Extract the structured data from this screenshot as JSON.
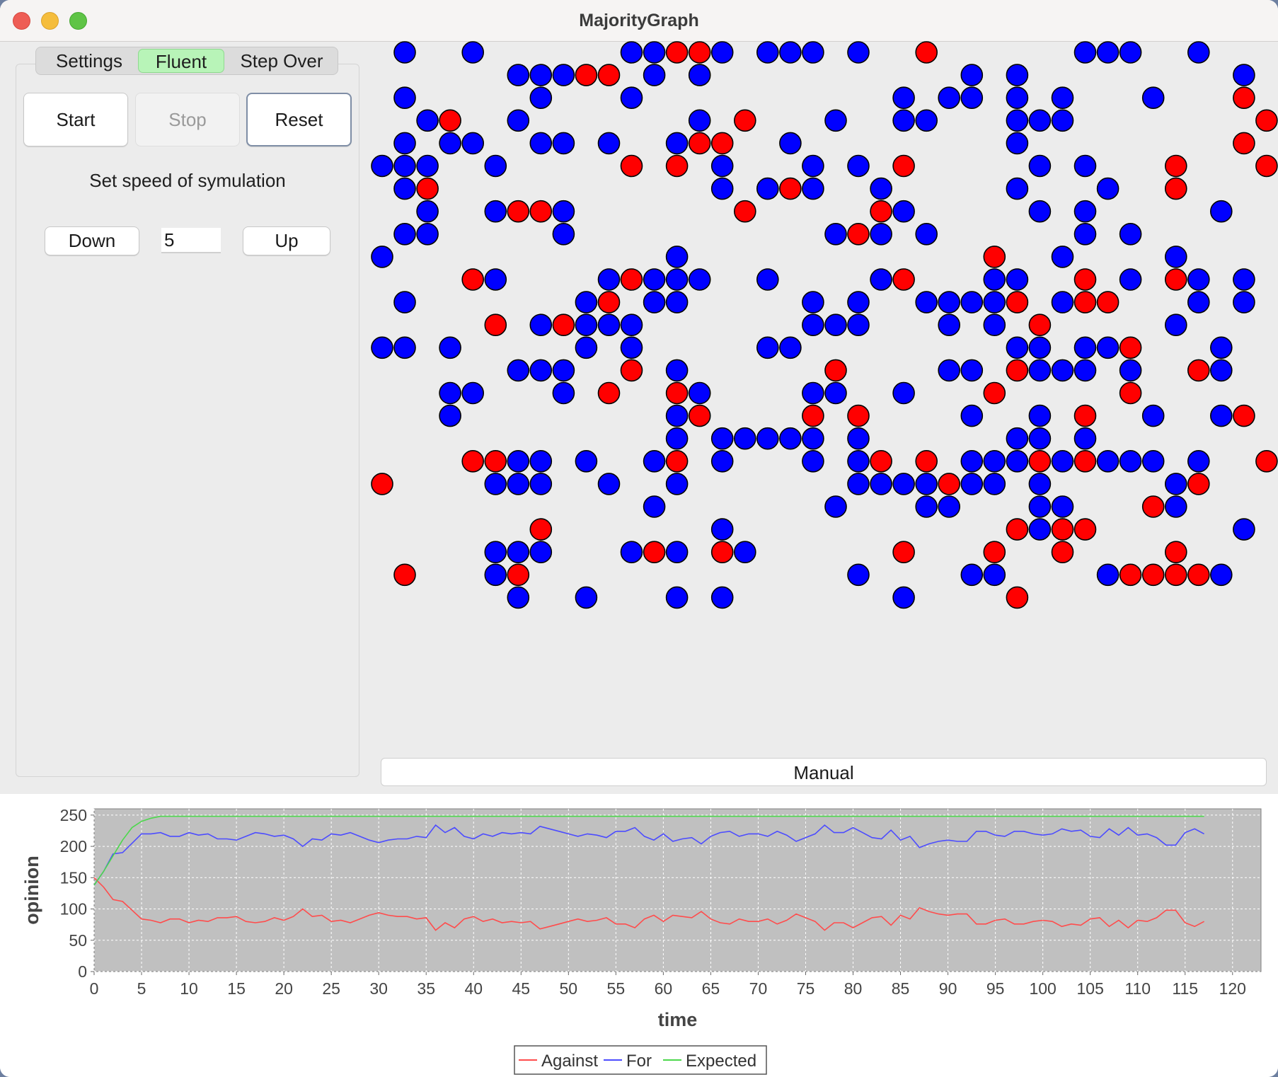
{
  "window": {
    "title": "MajorityGraph"
  },
  "tabs": [
    {
      "label": "Settings",
      "active": false
    },
    {
      "label": "Fluent",
      "active": true
    },
    {
      "label": "Step Over",
      "active": false
    }
  ],
  "controls": {
    "start_label": "Start",
    "stop_label": "Stop",
    "reset_label": "Reset",
    "speed_label": "Set speed of symulation",
    "down_label": "Down",
    "up_label": "Up",
    "speed_value": "5"
  },
  "manual_label": "Manual",
  "colors": {
    "for": "#0000ff",
    "against": "#ff0000",
    "expected": "#00e000",
    "plot_bg": "#c0c0c0",
    "tab_active": "#b8f4b8"
  },
  "grid": {
    "cols": 40,
    "rows": 25,
    "cells": [
      "R0 1B 4B 11B 12B 13R 14R 15B 17B 18B 19B 21B 24R 31B 32B 33B 36B",
      "R1 6B 7B 8B 9R 10R 12B 14B 26B 28B 38B",
      "R2 1B 7B 11B 23B 25B 26B 28B 30B 34B 38R",
      "R3 2B 3R 6B 14B 16R 20B 23B 24B 28B 29B 30B 39R",
      "R4 1B 3B 4B 7B 8B 10B 13B 14R 15R 18B 28B 38R",
      "R5 0B 1B 2B 5B 11R 13R 15B 19B 21B 23R 29B 31B 35R 39R",
      "R6 1B 2R 15B 17B 18R 19B 22B 28B 32B 35R",
      "R7 2B 5B 6R 7R 8B 16R 22R 23B 29B 31B 37B",
      "R8 1B 2B 8B 20B 21R 22B 24B 31B 33B",
      "R9 0B 13B 27R 30B 35B",
      "R10 4R 5B 10B 11R 12B 13B 14B 17B 22B 23R 27B 28B 31R 33B 35R 36B 38B",
      "R11 1B 9B 10R 12B 13B 19B 21B 24B 25B 26B 27B 28R 30B 31R 32R 36B 38B",
      "R12 5R 7B 8R 9B 10B 11B 19B 20B 21B 25B 27B 29R 35B",
      "R13 0B 1B 3B 9B 11B 17B 18B 28B 29B 31B 32B 33R 37B",
      "R14 6B 7B 8B 11R 13B 20R 25B 26B 28R 29B 30B 31B 33B 36R 37B",
      "R15 3B 4B 8B 10R 13R 14B 19B 20B 23B 27R 33R",
      "R16 3B 13B 14R 19R 21R 26B 29B 31R 34B 37B 38R",
      "R17 13B 15B 16B 17B 18B 19B 21B 28B 29B 31B",
      "R18 4R 5R 6B 7B 9B 12B 13R 15B 19B 21B 22R 24R 26B 27B 28B 29R 30B 31R 32B 33B 34B 36B 39R",
      "R19 0R 5B 6B 7B 10B 13B 21B 22B 23B 24B 25R 26B 27B 29B 35B 36R",
      "R20 12B 20B 24B 25B 29B 30B 34R 35B",
      "R21 7R 15B 28R 29B 30R 31R 38B",
      "R22 5B 6B 7B 11B 12R 13B 15R 16B 23R 27R 30R 35R",
      "R23 1R 5B 6R 21B 26B 27B 32B 33R 34R 35R 36R 37B",
      "R24 6B 9B 13B 15B 23B 28R"
    ]
  },
  "chart_data": {
    "type": "line",
    "xlabel": "time",
    "ylabel": "opinion",
    "xlim": [
      0,
      123
    ],
    "ylim": [
      0,
      260
    ],
    "xticks": [
      0,
      5,
      10,
      15,
      20,
      25,
      30,
      35,
      40,
      45,
      50,
      55,
      60,
      65,
      70,
      75,
      80,
      85,
      90,
      95,
      100,
      105,
      110,
      115,
      120
    ],
    "yticks": [
      0,
      50,
      100,
      150,
      200,
      250
    ],
    "grid": true,
    "legend_position": "bottom-center",
    "x": [
      0,
      1,
      2,
      3,
      4,
      5,
      6,
      7,
      8,
      9,
      10,
      11,
      12,
      13,
      14,
      15,
      16,
      17,
      18,
      19,
      20,
      21,
      22,
      23,
      24,
      25,
      26,
      27,
      28,
      29,
      30,
      31,
      32,
      33,
      34,
      35,
      36,
      37,
      38,
      39,
      40,
      41,
      42,
      43,
      44,
      45,
      46,
      47,
      48,
      49,
      50,
      51,
      52,
      53,
      54,
      55,
      56,
      57,
      58,
      59,
      60,
      61,
      62,
      63,
      64,
      65,
      66,
      67,
      68,
      69,
      70,
      71,
      72,
      73,
      74,
      75,
      76,
      77,
      78,
      79,
      80,
      81,
      82,
      83,
      84,
      85,
      86,
      87,
      88,
      89,
      90,
      91,
      92,
      93,
      94,
      95,
      96,
      97,
      98,
      99,
      100,
      101,
      102,
      103,
      104,
      105,
      106,
      107,
      108,
      109,
      110,
      111,
      112,
      113,
      114,
      115,
      116,
      117
    ],
    "series": [
      {
        "name": "Against",
        "color": "#ff4c4c",
        "values": [
          150,
          135,
          115,
          112,
          98,
          84,
          82,
          78,
          84,
          84,
          78,
          82,
          80,
          86,
          86,
          88,
          80,
          78,
          80,
          86,
          82,
          88,
          100,
          88,
          90,
          80,
          82,
          78,
          84,
          90,
          94,
          90,
          88,
          88,
          84,
          86,
          66,
          78,
          70,
          84,
          88,
          80,
          84,
          78,
          80,
          78,
          80,
          68,
          72,
          76,
          80,
          84,
          80,
          82,
          86,
          76,
          76,
          70,
          84,
          90,
          80,
          90,
          88,
          86,
          96,
          84,
          78,
          76,
          84,
          80,
          80,
          84,
          76,
          82,
          92,
          86,
          80,
          66,
          78,
          78,
          70,
          78,
          86,
          88,
          74,
          90,
          84,
          102,
          96,
          92,
          90,
          92,
          92,
          76,
          76,
          82,
          84,
          76,
          76,
          80,
          82,
          80,
          72,
          76,
          74,
          84,
          86,
          72,
          82,
          70,
          82,
          80,
          86,
          98,
          98,
          78,
          72,
          80
        ]
      },
      {
        "name": "For",
        "color": "#4c4cff",
        "values": [
          138,
          160,
          188,
          190,
          205,
          220,
          220,
          222,
          216,
          216,
          222,
          218,
          220,
          212,
          212,
          210,
          216,
          222,
          220,
          216,
          218,
          212,
          200,
          212,
          210,
          220,
          218,
          222,
          216,
          210,
          206,
          210,
          212,
          212,
          216,
          214,
          234,
          222,
          230,
          216,
          212,
          220,
          216,
          222,
          220,
          222,
          220,
          232,
          228,
          224,
          220,
          216,
          220,
          218,
          214,
          224,
          224,
          230,
          216,
          210,
          220,
          208,
          212,
          214,
          204,
          216,
          222,
          224,
          216,
          220,
          220,
          216,
          224,
          218,
          208,
          214,
          220,
          234,
          222,
          222,
          230,
          222,
          214,
          212,
          226,
          210,
          216,
          198,
          204,
          208,
          210,
          208,
          208,
          224,
          224,
          218,
          216,
          224,
          224,
          220,
          218,
          220,
          228,
          224,
          226,
          216,
          214,
          228,
          218,
          230,
          218,
          220,
          214,
          202,
          202,
          222,
          228,
          220
        ]
      },
      {
        "name": "Expected",
        "color": "#4cd84c",
        "values": [
          138,
          160,
          185,
          210,
          230,
          240,
          245,
          248,
          248,
          248,
          248,
          248,
          248,
          248,
          248,
          248,
          248,
          248,
          248,
          248,
          248,
          248,
          248,
          248,
          248,
          248,
          248,
          248,
          248,
          248,
          248,
          248,
          248,
          248,
          248,
          248,
          248,
          248,
          248,
          248,
          248,
          248,
          248,
          248,
          248,
          248,
          248,
          248,
          248,
          248,
          248,
          248,
          248,
          248,
          248,
          248,
          248,
          248,
          248,
          248,
          248,
          248,
          248,
          248,
          248,
          248,
          248,
          248,
          248,
          248,
          248,
          248,
          248,
          248,
          248,
          248,
          248,
          248,
          248,
          248,
          248,
          248,
          248,
          248,
          248,
          248,
          248,
          248,
          248,
          248,
          248,
          248,
          248,
          248,
          248,
          248,
          248,
          248,
          248,
          248,
          248,
          248,
          248,
          248,
          248,
          248,
          248,
          248,
          248,
          248,
          248,
          248,
          248,
          248,
          248,
          248,
          248,
          248
        ]
      }
    ]
  }
}
